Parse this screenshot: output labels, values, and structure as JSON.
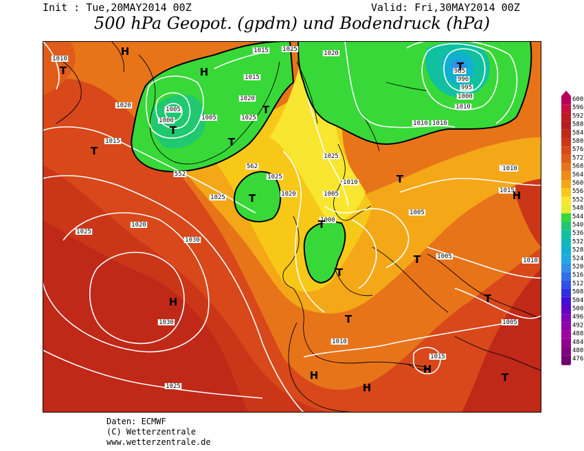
{
  "header": {
    "init": "Init : Tue,20MAY2014 00Z",
    "valid": "Valid: Fri,30MAY2014 00Z",
    "title": "500 hPa Geopot. (gpdm) und Bodendruck (hPa)"
  },
  "colors": {
    "g600": "#b8005a",
    "g596": "#c81040",
    "g592": "#c01820",
    "g588": "#b41e1e",
    "g584": "#c02818",
    "g580": "#cc3618",
    "g576": "#d8481a",
    "g572": "#e05c1a",
    "g568": "#e8741a",
    "g564": "#f08c18",
    "g560": "#f4a818",
    "g556": "#f8c818",
    "g552": "#f8e630",
    "g548": "#e6ec30",
    "g544": "#38d838",
    "g540": "#20c870",
    "g536": "#10c0a0",
    "g532": "#10b8b8",
    "g528": "#10b0d0",
    "g524": "#20a8e0",
    "g520": "#3090e8",
    "g516": "#3070e8",
    "g512": "#3050e8",
    "g508": "#3030e0",
    "g504": "#4010d8",
    "g500": "#6000c8",
    "g496": "#8000b8",
    "g492": "#9000a8",
    "g488": "#a000a0",
    "g484": "#900090",
    "g480": "#800080",
    "g476": "#700070",
    "isobar": "#ffffff",
    "coast": "#000000"
  },
  "legend": {
    "levels": [
      "600",
      "596",
      "592",
      "588",
      "584",
      "580",
      "576",
      "572",
      "568",
      "564",
      "560",
      "556",
      "552",
      "548",
      "544",
      "540",
      "536",
      "532",
      "528",
      "524",
      "520",
      "516",
      "512",
      "508",
      "504",
      "500",
      "496",
      "492",
      "488",
      "484",
      "480",
      "476"
    ]
  },
  "map": {
    "isobar_labels": [
      "1010",
      "1005",
      "1000",
      "1020",
      "1015",
      "1025",
      "1030",
      "985",
      "990",
      "995",
      "552",
      "562",
      "1010",
      "1015",
      "1020",
      "1025"
    ],
    "centers": [
      "H",
      "T"
    ]
  },
  "footer": {
    "line1": "Daten: ECMWF",
    "line2": "(C) Wetterzentrale",
    "line3": "www.wetterzentrale.de"
  }
}
